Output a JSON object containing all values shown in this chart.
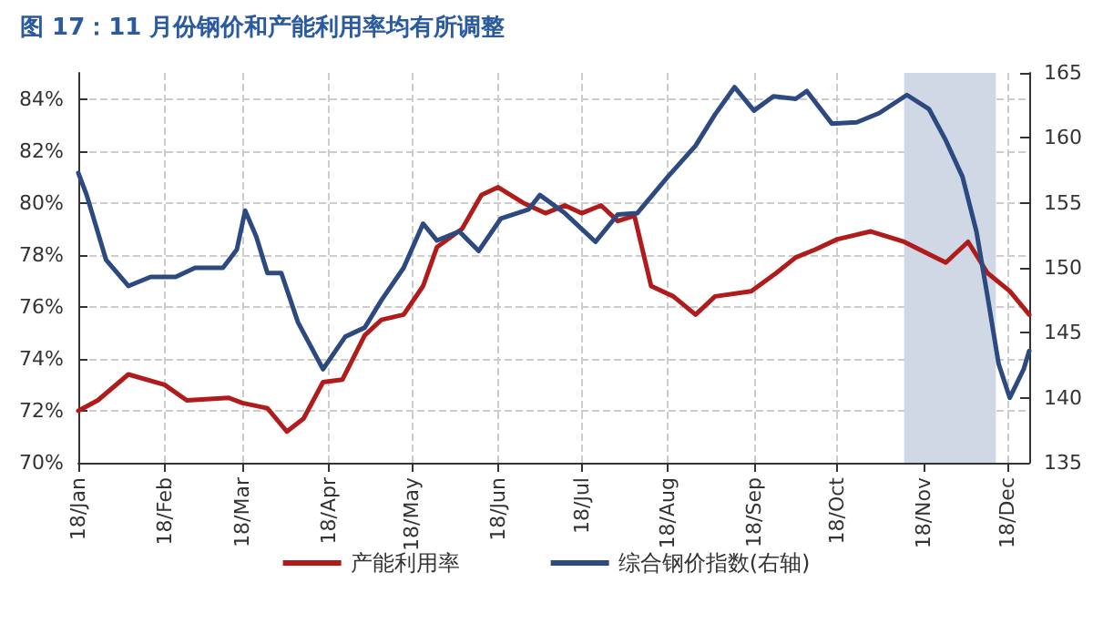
{
  "chart_data": {
    "type": "line",
    "title": "图 17：11 月份钢价和产能利用率均有所调整",
    "series": [
      {
        "name": "产能利用率",
        "color": "#b01c1c",
        "x": [
          "2018-01-01",
          "2018-01-08",
          "2018-01-19",
          "2018-02-01",
          "2018-02-09",
          "2018-02-24",
          "2018-03-01",
          "2018-03-10",
          "2018-03-17",
          "2018-03-23",
          "2018-03-30",
          "2018-04-06",
          "2018-04-14",
          "2018-04-20",
          "2018-04-28",
          "2018-05-05",
          "2018-05-10",
          "2018-05-19",
          "2018-05-26",
          "2018-06-01",
          "2018-06-10",
          "2018-06-18",
          "2018-06-25",
          "2018-07-01",
          "2018-07-08",
          "2018-07-14",
          "2018-07-20",
          "2018-07-26",
          "2018-08-03",
          "2018-08-11",
          "2018-08-18",
          "2018-08-31",
          "2018-09-09",
          "2018-09-16",
          "2018-09-23",
          "2018-10-01",
          "2018-10-13",
          "2018-10-25",
          "2018-11-09",
          "2018-11-17",
          "2018-11-24",
          "2018-12-02",
          "2018-12-09"
        ],
        "values": [
          72.0,
          72.4,
          73.4,
          73.0,
          72.4,
          72.5,
          72.3,
          72.1,
          71.2,
          71.7,
          73.1,
          73.2,
          74.9,
          75.5,
          75.7,
          76.8,
          78.3,
          79.0,
          80.3,
          80.6,
          80.0,
          79.6,
          79.9,
          79.6,
          79.9,
          79.3,
          79.5,
          76.8,
          76.4,
          75.7,
          76.4,
          76.6,
          77.3,
          77.9,
          78.2,
          78.6,
          78.9,
          78.5,
          77.7,
          78.5,
          77.3,
          76.6,
          75.7
        ]
      },
      {
        "name": "综合钢价指数(右轴)",
        "color": "#2c4a80",
        "axis": "y2",
        "x": [
          "2018-01-01",
          "2018-01-04",
          "2018-01-11",
          "2018-01-19",
          "2018-01-27",
          "2018-02-05",
          "2018-02-12",
          "2018-02-22",
          "2018-02-27",
          "2018-03-02",
          "2018-03-06",
          "2018-03-10",
          "2018-03-15",
          "2018-03-21",
          "2018-03-30",
          "2018-04-07",
          "2018-04-14",
          "2018-04-20",
          "2018-04-28",
          "2018-05-05",
          "2018-05-10",
          "2018-05-18",
          "2018-05-25",
          "2018-06-02",
          "2018-06-12",
          "2018-06-16",
          "2018-06-25",
          "2018-07-06",
          "2018-07-14",
          "2018-07-21",
          "2018-08-01",
          "2018-08-11",
          "2018-08-18",
          "2018-08-25",
          "2018-09-01",
          "2018-09-08",
          "2018-09-16",
          "2018-09-20",
          "2018-09-29",
          "2018-10-08",
          "2018-10-16",
          "2018-10-26",
          "2018-11-03",
          "2018-11-09",
          "2018-11-15",
          "2018-11-20",
          "2018-11-24",
          "2018-11-28",
          "2018-12-02",
          "2018-12-07",
          "2018-12-09"
        ],
        "values": [
          157.3,
          155.6,
          150.6,
          148.6,
          149.3,
          149.3,
          150.0,
          150.0,
          151.4,
          154.4,
          152.4,
          149.6,
          149.6,
          145.8,
          142.2,
          144.7,
          145.4,
          147.5,
          150.0,
          153.4,
          152.1,
          152.8,
          151.3,
          153.8,
          154.5,
          155.6,
          154.2,
          152.0,
          154.1,
          154.2,
          157.0,
          159.4,
          161.8,
          163.9,
          162.1,
          163.2,
          163.0,
          163.6,
          161.1,
          161.2,
          161.9,
          163.3,
          162.2,
          159.8,
          157.0,
          152.8,
          147.8,
          142.6,
          140.0,
          142.2,
          143.6
        ]
      }
    ],
    "xlim": [
      "2018-01-01",
      "2018-12-09"
    ],
    "xticks": [
      {
        "value": "2018-01-01",
        "label": "18/Jan"
      },
      {
        "value": "2018-02-01",
        "label": "18/Feb"
      },
      {
        "value": "2018-03-01",
        "label": "18/Mar"
      },
      {
        "value": "2018-04-01",
        "label": "18/Apr"
      },
      {
        "value": "2018-05-01",
        "label": "18/May"
      },
      {
        "value": "2018-06-01",
        "label": "18/Jun"
      },
      {
        "value": "2018-07-01",
        "label": "18/Jul"
      },
      {
        "value": "2018-08-01",
        "label": "18/Aug"
      },
      {
        "value": "2018-09-01",
        "label": "18/Sep"
      },
      {
        "value": "2018-10-01",
        "label": "18/Oct"
      },
      {
        "value": "2018-11-01",
        "label": "18/Nov"
      },
      {
        "value": "2018-12-01",
        "label": "18/Dec"
      }
    ],
    "ylim": [
      70,
      85
    ],
    "yticks": [
      {
        "value": 70,
        "label": "70%"
      },
      {
        "value": 72,
        "label": "72%"
      },
      {
        "value": 74,
        "label": "74%"
      },
      {
        "value": 76,
        "label": "76%"
      },
      {
        "value": 78,
        "label": "78%"
      },
      {
        "value": 80,
        "label": "80%"
      },
      {
        "value": 82,
        "label": "82%"
      },
      {
        "value": 84,
        "label": "84%"
      }
    ],
    "y2lim": [
      135,
      165
    ],
    "y2ticks": [
      135,
      140,
      145,
      150,
      155,
      160,
      165
    ],
    "bands": [
      {
        "axis": "x",
        "from": "2018-10-25",
        "to": "2018-11-27",
        "color": "#d0d8e6"
      }
    ],
    "grid": true,
    "legend": "bottom",
    "marker": "none",
    "line_style": "solid"
  }
}
